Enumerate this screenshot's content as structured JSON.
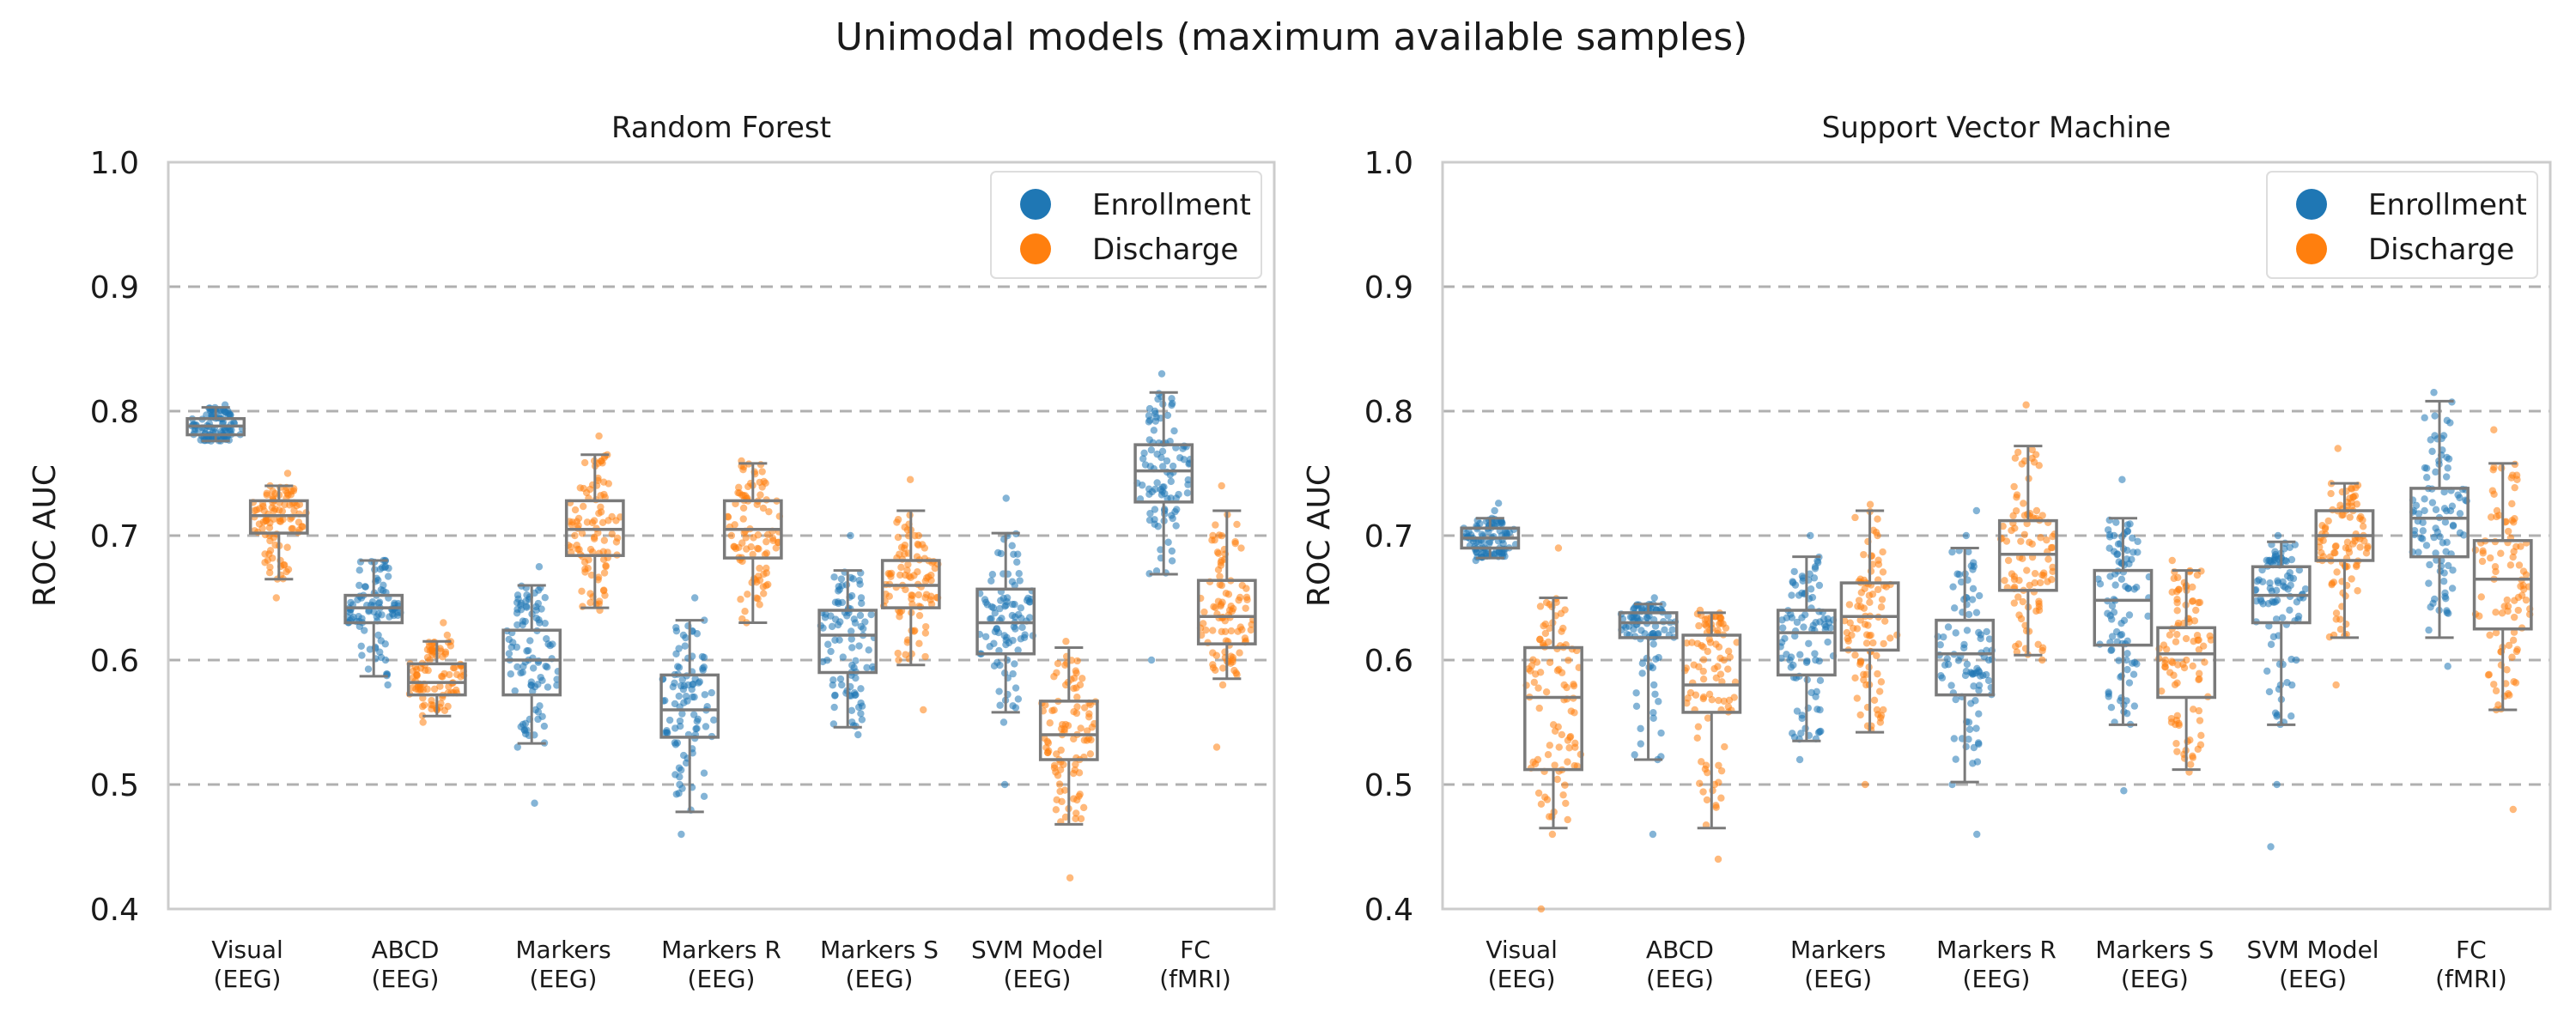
{
  "suptitle": "Unimodal models (maximum available samples)",
  "colors": {
    "Enrollment": "#1f77b4",
    "Discharge": "#ff7f0e",
    "grid": "#b0b0b0",
    "frame": "#cccccc"
  },
  "chart_data": [
    {
      "type": "box",
      "title": "Random Forest",
      "ylabel": "ROC AUC",
      "ylim": [
        0.4,
        1.0
      ],
      "yticks": [
        "0.4",
        "0.5",
        "0.6",
        "0.7",
        "0.8",
        "0.9",
        "1.0"
      ],
      "grid": true,
      "legend": "top-right",
      "categories": [
        "Visual\n(EEG)",
        "ABCD\n(EEG)",
        "Markers\n(EEG)",
        "Markers R\n(EEG)",
        "Markers S\n(EEG)",
        "SVM Model\n(EEG)",
        "FC\n(fMRI)"
      ],
      "series": [
        {
          "name": "Enrollment",
          "boxes": [
            {
              "whislo": 0.776,
              "q1": 0.781,
              "med": 0.788,
              "q3": 0.794,
              "whishi": 0.803,
              "points": [
                0.776,
                0.78,
                0.785,
                0.79,
                0.795,
                0.8,
                0.805
              ]
            },
            {
              "whislo": 0.587,
              "q1": 0.63,
              "med": 0.642,
              "q3": 0.652,
              "whishi": 0.68,
              "points": [
                0.58,
                0.6,
                0.62,
                0.64,
                0.66,
                0.68
              ]
            },
            {
              "whislo": 0.533,
              "q1": 0.572,
              "med": 0.6,
              "q3": 0.624,
              "whishi": 0.66,
              "points": [
                0.485,
                0.53,
                0.56,
                0.6,
                0.64,
                0.675
              ]
            },
            {
              "whislo": 0.478,
              "q1": 0.538,
              "med": 0.56,
              "q3": 0.588,
              "whishi": 0.632,
              "points": [
                0.46,
                0.5,
                0.54,
                0.58,
                0.62,
                0.65
              ]
            },
            {
              "whislo": 0.546,
              "q1": 0.59,
              "med": 0.62,
              "q3": 0.64,
              "whishi": 0.672,
              "points": [
                0.54,
                0.58,
                0.61,
                0.64,
                0.67,
                0.7
              ]
            },
            {
              "whislo": 0.558,
              "q1": 0.605,
              "med": 0.63,
              "q3": 0.657,
              "whishi": 0.702,
              "points": [
                0.5,
                0.55,
                0.6,
                0.65,
                0.7,
                0.73
              ]
            },
            {
              "whislo": 0.669,
              "q1": 0.727,
              "med": 0.752,
              "q3": 0.773,
              "whishi": 0.815,
              "points": [
                0.6,
                0.67,
                0.72,
                0.76,
                0.8,
                0.83
              ]
            }
          ]
        },
        {
          "name": "Discharge",
          "boxes": [
            {
              "whislo": 0.665,
              "q1": 0.702,
              "med": 0.716,
              "q3": 0.728,
              "whishi": 0.74,
              "points": [
                0.65,
                0.68,
                0.7,
                0.72,
                0.74,
                0.75
              ]
            },
            {
              "whislo": 0.555,
              "q1": 0.572,
              "med": 0.582,
              "q3": 0.597,
              "whishi": 0.615,
              "points": [
                0.55,
                0.57,
                0.58,
                0.6,
                0.62,
                0.63
              ]
            },
            {
              "whislo": 0.642,
              "q1": 0.684,
              "med": 0.705,
              "q3": 0.728,
              "whishi": 0.765,
              "points": [
                0.64,
                0.67,
                0.7,
                0.73,
                0.76,
                0.78
              ]
            },
            {
              "whislo": 0.63,
              "q1": 0.682,
              "med": 0.705,
              "q3": 0.728,
              "whishi": 0.758,
              "points": [
                0.63,
                0.67,
                0.7,
                0.73,
                0.76
              ]
            },
            {
              "whislo": 0.596,
              "q1": 0.642,
              "med": 0.66,
              "q3": 0.68,
              "whishi": 0.72,
              "points": [
                0.56,
                0.6,
                0.64,
                0.66,
                0.7,
                0.745
              ]
            },
            {
              "whislo": 0.468,
              "q1": 0.52,
              "med": 0.54,
              "q3": 0.567,
              "whishi": 0.61,
              "points": [
                0.425,
                0.47,
                0.51,
                0.54,
                0.58,
                0.615
              ]
            },
            {
              "whislo": 0.585,
              "q1": 0.613,
              "med": 0.635,
              "q3": 0.664,
              "whishi": 0.72,
              "points": [
                0.53,
                0.58,
                0.62,
                0.66,
                0.7,
                0.74
              ]
            }
          ]
        }
      ]
    },
    {
      "type": "box",
      "title": "Support Vector Machine",
      "ylabel": "ROC AUC",
      "ylim": [
        0.4,
        1.0
      ],
      "yticks": [
        "0.4",
        "0.5",
        "0.6",
        "0.7",
        "0.8",
        "0.9",
        "1.0"
      ],
      "grid": true,
      "legend": "top-right",
      "categories": [
        "Visual\n(EEG)",
        "ABCD\n(EEG)",
        "Markers\n(EEG)",
        "Markers R\n(EEG)",
        "Markers S\n(EEG)",
        "SVM Model\n(EEG)",
        "FC\n(fMRI)"
      ],
      "series": [
        {
          "name": "Enrollment",
          "boxes": [
            {
              "whislo": 0.682,
              "q1": 0.69,
              "med": 0.698,
              "q3": 0.706,
              "whishi": 0.714,
              "points": [
                0.68,
                0.69,
                0.7,
                0.71,
                0.72,
                0.726
              ]
            },
            {
              "whislo": 0.52,
              "q1": 0.618,
              "med": 0.63,
              "q3": 0.638,
              "whishi": 0.645,
              "points": [
                0.46,
                0.52,
                0.58,
                0.62,
                0.635,
                0.65
              ]
            },
            {
              "whislo": 0.535,
              "q1": 0.588,
              "med": 0.622,
              "q3": 0.64,
              "whishi": 0.683,
              "points": [
                0.52,
                0.56,
                0.6,
                0.63,
                0.66,
                0.7
              ]
            },
            {
              "whislo": 0.502,
              "q1": 0.572,
              "med": 0.605,
              "q3": 0.632,
              "whishi": 0.69,
              "points": [
                0.46,
                0.5,
                0.55,
                0.6,
                0.65,
                0.7,
                0.72
              ]
            },
            {
              "whislo": 0.548,
              "q1": 0.612,
              "med": 0.648,
              "q3": 0.672,
              "whishi": 0.714,
              "points": [
                0.495,
                0.55,
                0.6,
                0.65,
                0.7,
                0.745
              ]
            },
            {
              "whislo": 0.548,
              "q1": 0.63,
              "med": 0.652,
              "q3": 0.675,
              "whishi": 0.695,
              "points": [
                0.45,
                0.5,
                0.55,
                0.6,
                0.65,
                0.7
              ]
            },
            {
              "whislo": 0.618,
              "q1": 0.683,
              "med": 0.714,
              "q3": 0.738,
              "whishi": 0.808,
              "points": [
                0.595,
                0.64,
                0.68,
                0.72,
                0.76,
                0.815
              ]
            }
          ]
        },
        {
          "name": "Discharge",
          "boxes": [
            {
              "whislo": 0.465,
              "q1": 0.512,
              "med": 0.57,
              "q3": 0.61,
              "whishi": 0.65,
              "points": [
                0.4,
                0.46,
                0.52,
                0.58,
                0.63,
                0.69
              ]
            },
            {
              "whislo": 0.465,
              "q1": 0.558,
              "med": 0.58,
              "q3": 0.62,
              "whishi": 0.638,
              "points": [
                0.44,
                0.5,
                0.56,
                0.6,
                0.64
              ]
            },
            {
              "whislo": 0.542,
              "q1": 0.608,
              "med": 0.635,
              "q3": 0.662,
              "whishi": 0.72,
              "points": [
                0.5,
                0.56,
                0.62,
                0.66,
                0.7,
                0.725
              ]
            },
            {
              "whislo": 0.604,
              "q1": 0.656,
              "med": 0.685,
              "q3": 0.712,
              "whishi": 0.772,
              "points": [
                0.6,
                0.64,
                0.68,
                0.72,
                0.76,
                0.805
              ]
            },
            {
              "whislo": 0.512,
              "q1": 0.57,
              "med": 0.605,
              "q3": 0.626,
              "whishi": 0.672,
              "points": [
                0.51,
                0.55,
                0.6,
                0.64,
                0.68
              ]
            },
            {
              "whislo": 0.618,
              "q1": 0.68,
              "med": 0.7,
              "q3": 0.72,
              "whishi": 0.742,
              "points": [
                0.58,
                0.62,
                0.68,
                0.7,
                0.73,
                0.77
              ]
            },
            {
              "whislo": 0.56,
              "q1": 0.625,
              "med": 0.665,
              "q3": 0.696,
              "whishi": 0.758,
              "points": [
                0.48,
                0.56,
                0.62,
                0.66,
                0.72,
                0.785
              ]
            }
          ]
        }
      ]
    }
  ]
}
